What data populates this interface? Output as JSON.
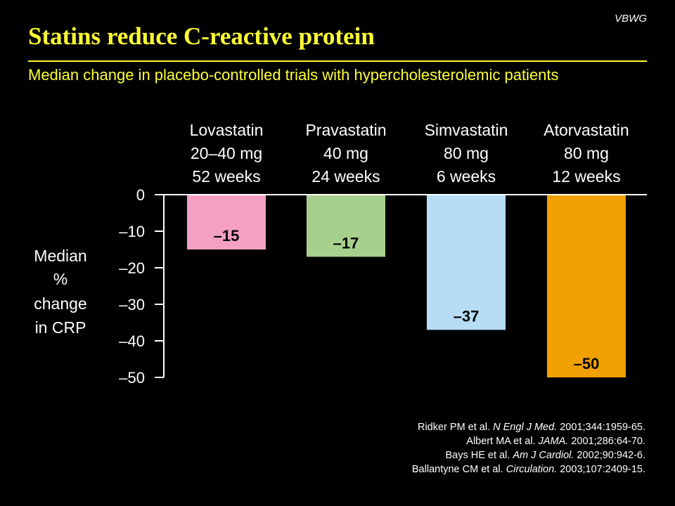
{
  "brand": "VBWG",
  "title": "Statins reduce C-reactive protein",
  "subtitle": "Median change in placebo-controlled trials with hypercholesterolemic patients",
  "references": [
    {
      "pre": "Ridker PM et al. ",
      "journal": "N Engl J Med.",
      "post": " 2001;344:1959-65."
    },
    {
      "pre": "Albert MA et al. ",
      "journal": "JAMA.",
      "post": " 2001;286:64-70."
    },
    {
      "pre": "Bays HE et al. ",
      "journal": "Am J Cardiol.",
      "post": " 2002;90:942-6."
    },
    {
      "pre": "Ballantyne CM et al. ",
      "journal": "Circulation.",
      "post": " 2003;107:2409-15."
    }
  ],
  "chart_data": {
    "type": "bar",
    "ylabel": [
      "Median",
      "%",
      "change",
      "in CRP"
    ],
    "ylim": [
      -50,
      0
    ],
    "yticks": [
      0,
      -10,
      -20,
      -30,
      -40,
      -50
    ],
    "ytick_labels": [
      "0",
      "–10",
      "–20",
      "–30",
      "–40",
      "–50"
    ],
    "categories": [
      {
        "name": "Lovastatin",
        "dose": "20–40 mg",
        "duration": "52 weeks"
      },
      {
        "name": "Pravastatin",
        "dose": "40 mg",
        "duration": "24 weeks"
      },
      {
        "name": "Simvastatin",
        "dose": "80 mg",
        "duration": "6 weeks"
      },
      {
        "name": "Atorvastatin",
        "dose": "80 mg",
        "duration": "12 weeks"
      }
    ],
    "values": [
      -15,
      -17,
      -37,
      -50
    ],
    "value_labels": [
      "–15",
      "–17",
      "–37",
      "–50"
    ],
    "colors": [
      "#f3a0c2",
      "#a8d08d",
      "#b7dcf5",
      "#f0a000"
    ],
    "grid": false
  }
}
